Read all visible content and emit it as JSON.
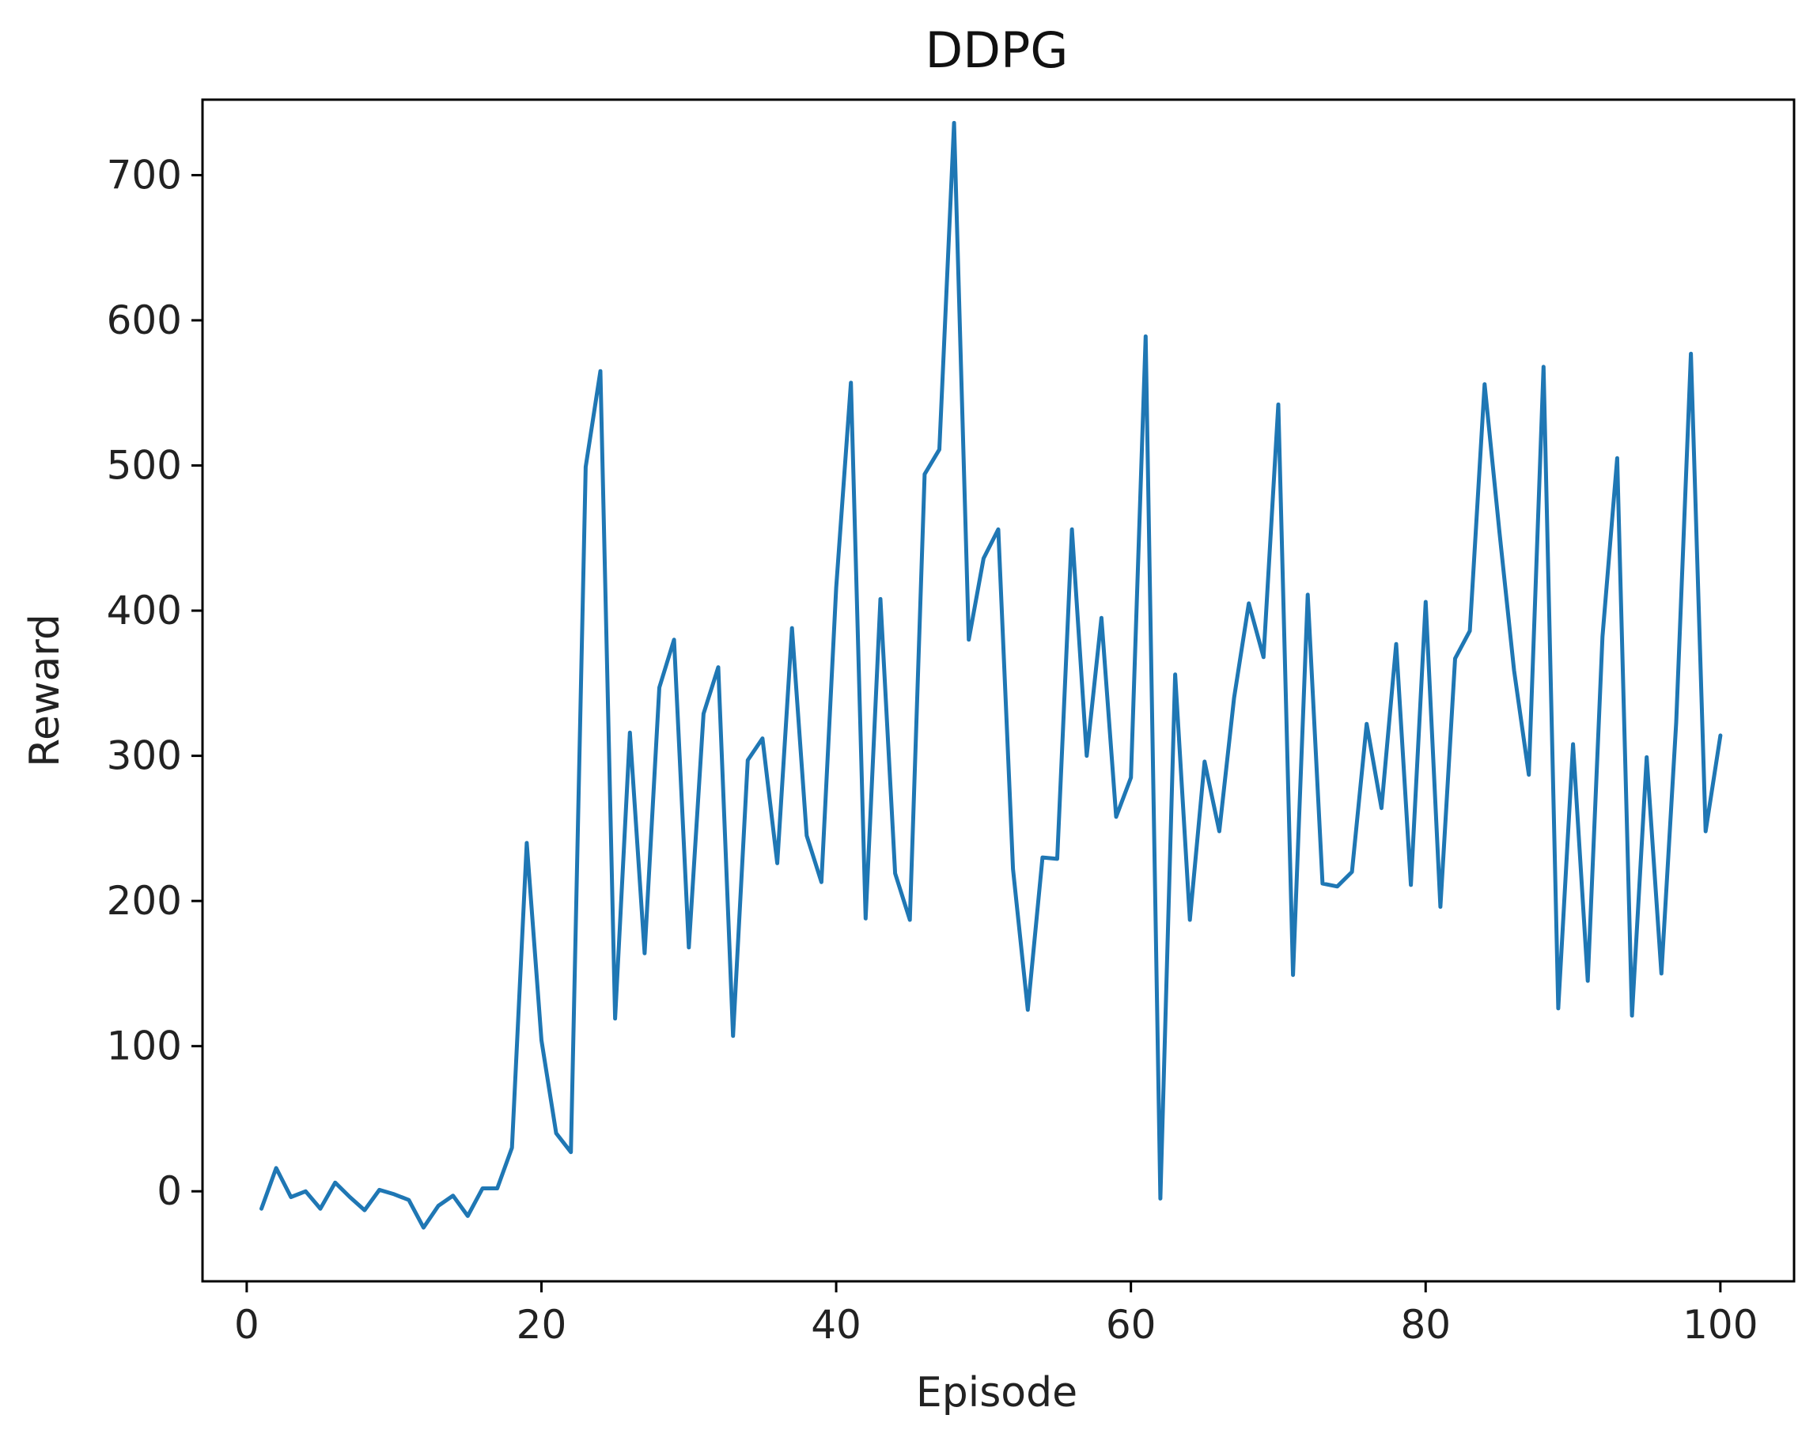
{
  "chart_data": {
    "type": "line",
    "title": "DDPG",
    "xlabel": "Episode",
    "ylabel": "Reward",
    "xlim": [
      -3,
      105
    ],
    "ylim": [
      -62,
      752
    ],
    "xticks": [
      0,
      20,
      40,
      60,
      80,
      100
    ],
    "yticks": [
      0,
      100,
      200,
      300,
      400,
      500,
      600,
      700
    ],
    "grid": false,
    "line_color": "#1f77b4",
    "series": [
      {
        "x": [
          1,
          2,
          3,
          4,
          5,
          6,
          7,
          8,
          9,
          10,
          11,
          12,
          13,
          14,
          15,
          16,
          17,
          18,
          19,
          20,
          21,
          22,
          23,
          24,
          25,
          26,
          27,
          28,
          29,
          30,
          31,
          32,
          33,
          34,
          35,
          36,
          37,
          38,
          39,
          40,
          41,
          42,
          43,
          44,
          45,
          46,
          47,
          48,
          49,
          50,
          51,
          52,
          53,
          54,
          55,
          56,
          57,
          58,
          59,
          60,
          61,
          62,
          63,
          64,
          65,
          66,
          67,
          68,
          69,
          70,
          71,
          72,
          73,
          74,
          75,
          76,
          77,
          78,
          79,
          80,
          81,
          82,
          83,
          84,
          85,
          86,
          87,
          88,
          89,
          90,
          91,
          92,
          93,
          94,
          95,
          96,
          97,
          98,
          99,
          100
        ],
        "values": [
          -12,
          16,
          -4,
          0,
          -12,
          6,
          -4,
          -13,
          1,
          -2,
          -6,
          -25,
          -10,
          -3,
          -17,
          2,
          2,
          30,
          240,
          104,
          40,
          27,
          499,
          565,
          119,
          316,
          164,
          347,
          380,
          168,
          329,
          361,
          107,
          297,
          312,
          226,
          388,
          245,
          213,
          416,
          557,
          188,
          408,
          219,
          187,
          494,
          511,
          736,
          380,
          436,
          456,
          222,
          125,
          230,
          229,
          456,
          300,
          395,
          258,
          285,
          589,
          -5,
          356,
          187,
          296,
          248,
          340,
          405,
          368,
          542,
          149,
          411,
          212,
          210,
          220,
          322,
          264,
          377,
          211,
          406,
          196,
          367,
          386,
          556,
          455,
          359,
          287,
          568,
          126,
          308,
          145,
          382,
          505,
          121,
          299,
          150,
          323,
          577,
          248,
          314
        ]
      }
    ]
  }
}
